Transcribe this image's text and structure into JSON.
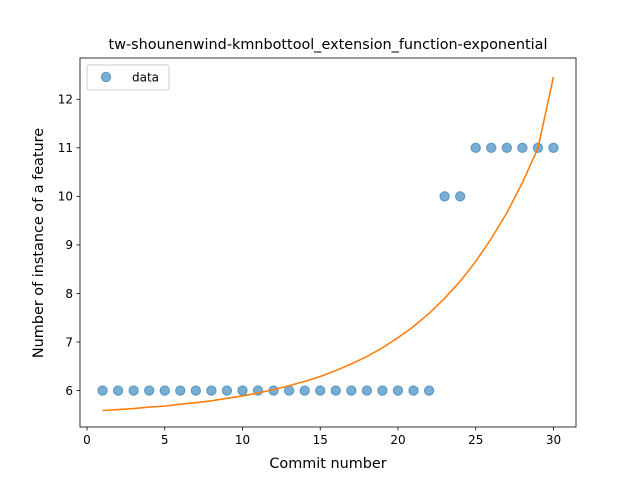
{
  "chart_data": {
    "type": "scatter",
    "title": "tw-shounenwind-kmnbottool_extension_function-exponential",
    "xlabel": "Commit number",
    "ylabel": "Number of instance of a feature",
    "xlim": [
      -0.45,
      31.45
    ],
    "ylim": [
      5.25,
      12.85
    ],
    "xticks": [
      0,
      5,
      10,
      15,
      20,
      25,
      30
    ],
    "yticks": [
      6,
      7,
      8,
      9,
      10,
      11,
      12
    ],
    "legend": {
      "position": "upper-left",
      "entries": [
        "data"
      ]
    },
    "grid": false,
    "colors": {
      "data": "#1f77b4",
      "fit": "#ff7f0e"
    },
    "series": [
      {
        "name": "data",
        "kind": "scatter",
        "x": [
          1,
          2,
          3,
          4,
          5,
          6,
          7,
          8,
          9,
          10,
          11,
          12,
          13,
          14,
          15,
          16,
          17,
          18,
          19,
          20,
          21,
          22,
          23,
          24,
          25,
          26,
          27,
          28,
          29,
          30
        ],
        "y": [
          6,
          6,
          6,
          6,
          6,
          6,
          6,
          6,
          6,
          6,
          6,
          6,
          6,
          6,
          6,
          6,
          6,
          6,
          6,
          6,
          6,
          6,
          10,
          10,
          11,
          11,
          11,
          11,
          11,
          11
        ]
      },
      {
        "kind": "line",
        "x": [
          1,
          2,
          3,
          4,
          5,
          6,
          7,
          8,
          9,
          10,
          11,
          12,
          13,
          14,
          15,
          16,
          17,
          18,
          19,
          20,
          21,
          22,
          23,
          24,
          25,
          26,
          27,
          28,
          29,
          30
        ],
        "y": [
          5.59,
          5.61,
          5.63,
          5.66,
          5.68,
          5.72,
          5.75,
          5.79,
          5.84,
          5.89,
          5.95,
          6.02,
          6.1,
          6.19,
          6.29,
          6.41,
          6.55,
          6.7,
          6.88,
          7.09,
          7.32,
          7.59,
          7.9,
          8.25,
          8.66,
          9.13,
          9.66,
          10.28,
          10.99,
          12.46
        ]
      }
    ]
  }
}
